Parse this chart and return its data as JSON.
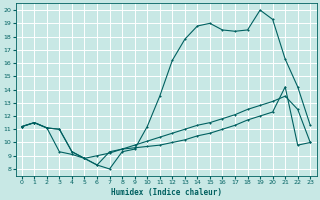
{
  "bg_color": "#c8e8e5",
  "grid_color": "#ffffff",
  "line_color": "#006060",
  "xlabel": "Humidex (Indice chaleur)",
  "xlim": [
    -0.5,
    23.5
  ],
  "ylim": [
    7.5,
    20.5
  ],
  "xticks": [
    0,
    1,
    2,
    3,
    4,
    5,
    6,
    7,
    8,
    9,
    10,
    11,
    12,
    13,
    14,
    15,
    16,
    17,
    18,
    19,
    20,
    21,
    22,
    23
  ],
  "yticks": [
    8,
    9,
    10,
    11,
    12,
    13,
    14,
    15,
    16,
    17,
    18,
    19,
    20
  ],
  "curve1_x": [
    0,
    1,
    2,
    3,
    4,
    5,
    6,
    7,
    8,
    9,
    10,
    11,
    12,
    13,
    14,
    15,
    16,
    17,
    18,
    19,
    20,
    21,
    22,
    23
  ],
  "curve1_y": [
    11.2,
    11.5,
    11.1,
    11.0,
    9.3,
    8.8,
    8.3,
    8.0,
    9.3,
    9.5,
    11.2,
    13.5,
    16.2,
    17.8,
    18.8,
    19.0,
    18.5,
    18.4,
    18.5,
    20.0,
    19.3,
    16.3,
    14.2,
    11.3
  ],
  "curve2_x": [
    0,
    1,
    2,
    3,
    4,
    5,
    6,
    7,
    8,
    9,
    10,
    11,
    12,
    13,
    14,
    15,
    16,
    17,
    18,
    19,
    20,
    21,
    22,
    23
  ],
  "curve2_y": [
    11.2,
    11.5,
    11.1,
    11.0,
    9.3,
    8.8,
    9.0,
    9.2,
    9.5,
    9.8,
    10.1,
    10.4,
    10.7,
    11.0,
    11.3,
    11.5,
    11.8,
    12.1,
    12.5,
    12.8,
    13.1,
    13.5,
    12.5,
    10.0
  ],
  "curve3_x": [
    0,
    1,
    2,
    3,
    4,
    5,
    6,
    7,
    8,
    9,
    10,
    11,
    12,
    13,
    14,
    15,
    16,
    17,
    18,
    19,
    20,
    21,
    22,
    23
  ],
  "curve3_y": [
    11.2,
    11.5,
    11.1,
    9.3,
    9.1,
    8.8,
    8.3,
    9.3,
    9.5,
    9.6,
    9.7,
    9.8,
    10.0,
    10.2,
    10.5,
    10.7,
    11.0,
    11.3,
    11.7,
    12.0,
    12.3,
    14.2,
    9.8,
    10.0
  ]
}
